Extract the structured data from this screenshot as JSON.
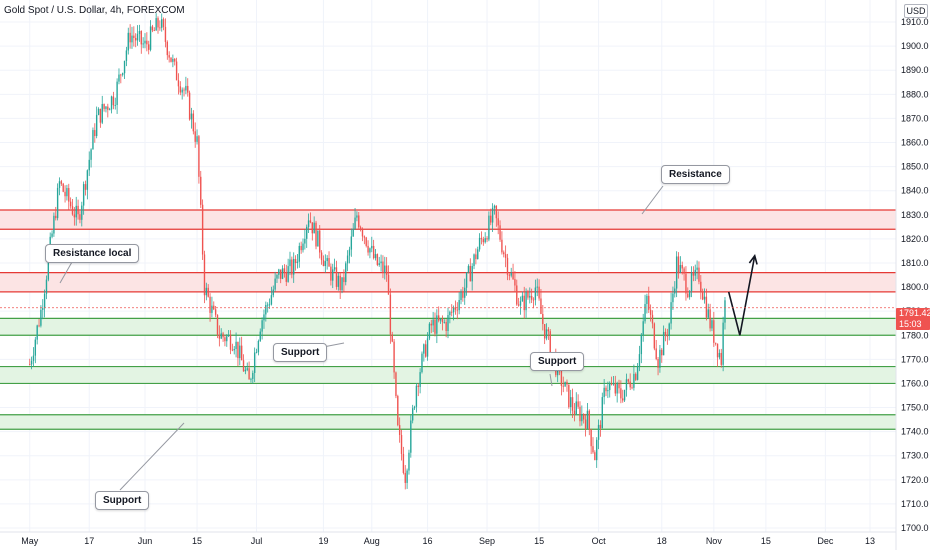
{
  "header": {
    "symbol_title": "Gold Spot / U.S. Dollar, 4h, FOREXCOM",
    "currency": "USD"
  },
  "last_price": {
    "value": "1791.42",
    "countdown": "15:03",
    "color": "#ef5350"
  },
  "colors": {
    "up": "#26a69a",
    "down": "#ef5350",
    "resistance_fill": "#fce4e4",
    "resistance_line": "#e53935",
    "support_fill": "#e3f4e3",
    "support_line": "#43a047",
    "axis_text": "#131722",
    "grid": "#f0f3fa"
  },
  "annotations": {
    "resistance": "Resistance",
    "resistance_local": "Resistance local",
    "support_1": "Support",
    "support_2": "Support",
    "support_3": "Support"
  },
  "chart_data": {
    "type": "candlestick",
    "ylim": [
      1700,
      1915
    ],
    "y_ticks": [
      1910,
      1900,
      1890,
      1880,
      1870,
      1860,
      1850,
      1840,
      1830,
      1820,
      1810,
      1800,
      1790,
      1780,
      1770,
      1760,
      1750,
      1740,
      1730,
      1720,
      1710,
      1700
    ],
    "x_ticks": [
      "May",
      "17",
      "Jun",
      "15",
      "Jul",
      "19",
      "Aug",
      "16",
      "Sep",
      "15",
      "Oct",
      "18",
      "Nov",
      "15",
      "Dec",
      "13"
    ],
    "zones": [
      {
        "kind": "resistance",
        "low": 1824,
        "high": 1832
      },
      {
        "kind": "resistance",
        "low": 1798,
        "high": 1806
      },
      {
        "kind": "support",
        "low": 1780,
        "high": 1787
      },
      {
        "kind": "support",
        "low": 1760,
        "high": 1767
      },
      {
        "kind": "support",
        "low": 1741,
        "high": 1747
      }
    ],
    "projection": [
      {
        "date": "2021-11-05",
        "price": 1798
      },
      {
        "date": "2021-11-08",
        "price": 1780
      },
      {
        "date": "2021-11-12",
        "price": 1813
      }
    ],
    "price_path": [
      {
        "date": "2021-05-01",
        "price": 1768
      },
      {
        "date": "2021-05-04",
        "price": 1790
      },
      {
        "date": "2021-05-09",
        "price": 1843
      },
      {
        "date": "2021-05-14",
        "price": 1828
      },
      {
        "date": "2021-05-19",
        "price": 1870
      },
      {
        "date": "2021-05-24",
        "price": 1880
      },
      {
        "date": "2021-05-28",
        "price": 1905
      },
      {
        "date": "2021-06-01",
        "price": 1900
      },
      {
        "date": "2021-06-05",
        "price": 1910
      },
      {
        "date": "2021-06-09",
        "price": 1890
      },
      {
        "date": "2021-06-12",
        "price": 1880
      },
      {
        "date": "2021-06-15",
        "price": 1860
      },
      {
        "date": "2021-06-17",
        "price": 1800
      },
      {
        "date": "2021-06-21",
        "price": 1780
      },
      {
        "date": "2021-06-25",
        "price": 1778
      },
      {
        "date": "2021-06-29",
        "price": 1760
      },
      {
        "date": "2021-07-02",
        "price": 1785
      },
      {
        "date": "2021-07-07",
        "price": 1805
      },
      {
        "date": "2021-07-11",
        "price": 1808
      },
      {
        "date": "2021-07-15",
        "price": 1830
      },
      {
        "date": "2021-07-20",
        "price": 1808
      },
      {
        "date": "2021-07-24",
        "price": 1800
      },
      {
        "date": "2021-07-28",
        "price": 1830
      },
      {
        "date": "2021-08-02",
        "price": 1810
      },
      {
        "date": "2021-08-05",
        "price": 1806
      },
      {
        "date": "2021-08-08",
        "price": 1740
      },
      {
        "date": "2021-08-10",
        "price": 1722
      },
      {
        "date": "2021-08-13",
        "price": 1760
      },
      {
        "date": "2021-08-17",
        "price": 1784
      },
      {
        "date": "2021-08-21",
        "price": 1785
      },
      {
        "date": "2021-08-26",
        "price": 1800
      },
      {
        "date": "2021-08-30",
        "price": 1818
      },
      {
        "date": "2021-09-03",
        "price": 1830
      },
      {
        "date": "2021-09-06",
        "price": 1812
      },
      {
        "date": "2021-09-10",
        "price": 1792
      },
      {
        "date": "2021-09-14",
        "price": 1800
      },
      {
        "date": "2021-09-16",
        "price": 1785
      },
      {
        "date": "2021-09-20",
        "price": 1765
      },
      {
        "date": "2021-09-24",
        "price": 1750
      },
      {
        "date": "2021-09-28",
        "price": 1745
      },
      {
        "date": "2021-09-30",
        "price": 1730
      },
      {
        "date": "2021-10-03",
        "price": 1760
      },
      {
        "date": "2021-10-07",
        "price": 1755
      },
      {
        "date": "2021-10-11",
        "price": 1765
      },
      {
        "date": "2021-10-14",
        "price": 1795
      },
      {
        "date": "2021-10-17",
        "price": 1770
      },
      {
        "date": "2021-10-20",
        "price": 1785
      },
      {
        "date": "2021-10-22",
        "price": 1810
      },
      {
        "date": "2021-10-25",
        "price": 1800
      },
      {
        "date": "2021-10-28",
        "price": 1805
      },
      {
        "date": "2021-10-31",
        "price": 1785
      },
      {
        "date": "2021-11-03",
        "price": 1770
      },
      {
        "date": "2021-11-04",
        "price": 1798
      }
    ]
  }
}
